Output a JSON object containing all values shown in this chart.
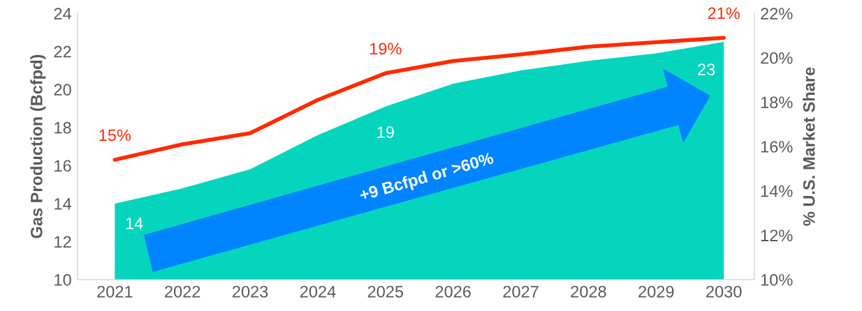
{
  "chart_data": {
    "type": "area",
    "ylabel": "Gas Production (Bcfpd)",
    "y2label": "% U.S. Market Share",
    "categories": [
      "2021",
      "2022",
      "2023",
      "2024",
      "2025",
      "2026",
      "2027",
      "2028",
      "2029",
      "2030"
    ],
    "series": [
      {
        "color": "#05d5bd",
        "values": [
          14.0,
          14.8,
          15.8,
          17.6,
          19.1,
          20.3,
          21.0,
          21.5,
          21.9,
          22.5
        ],
        "value_labels": [
          "14",
          null,
          null,
          null,
          "19",
          null,
          null,
          null,
          null,
          "23"
        ]
      },
      {
        "type": "line",
        "axis": "y2",
        "color": "#ff2a00",
        "values": [
          15.4,
          16.1,
          16.6,
          18.1,
          19.3,
          19.85,
          20.15,
          20.5,
          20.7,
          20.9
        ],
        "value_labels": [
          "15%",
          null,
          null,
          null,
          "19%",
          null,
          null,
          null,
          null,
          "21%"
        ]
      }
    ],
    "ylim": [
      10,
      24
    ],
    "yticks": [
      10,
      12,
      14,
      16,
      18,
      20,
      22,
      24
    ],
    "y2lim": [
      10,
      22
    ],
    "y2ticks": [
      {
        "value": 10,
        "label": "10%"
      },
      {
        "value": 12,
        "label": "12%"
      },
      {
        "value": 14,
        "label": "14%"
      },
      {
        "value": 16,
        "label": "16%"
      },
      {
        "value": 18,
        "label": "18%"
      },
      {
        "value": 20,
        "label": "20%"
      },
      {
        "value": 22,
        "label": "22%"
      }
    ],
    "annotations": [
      "+9 Bcfpd or >60%"
    ],
    "grid": false,
    "legend": false
  }
}
